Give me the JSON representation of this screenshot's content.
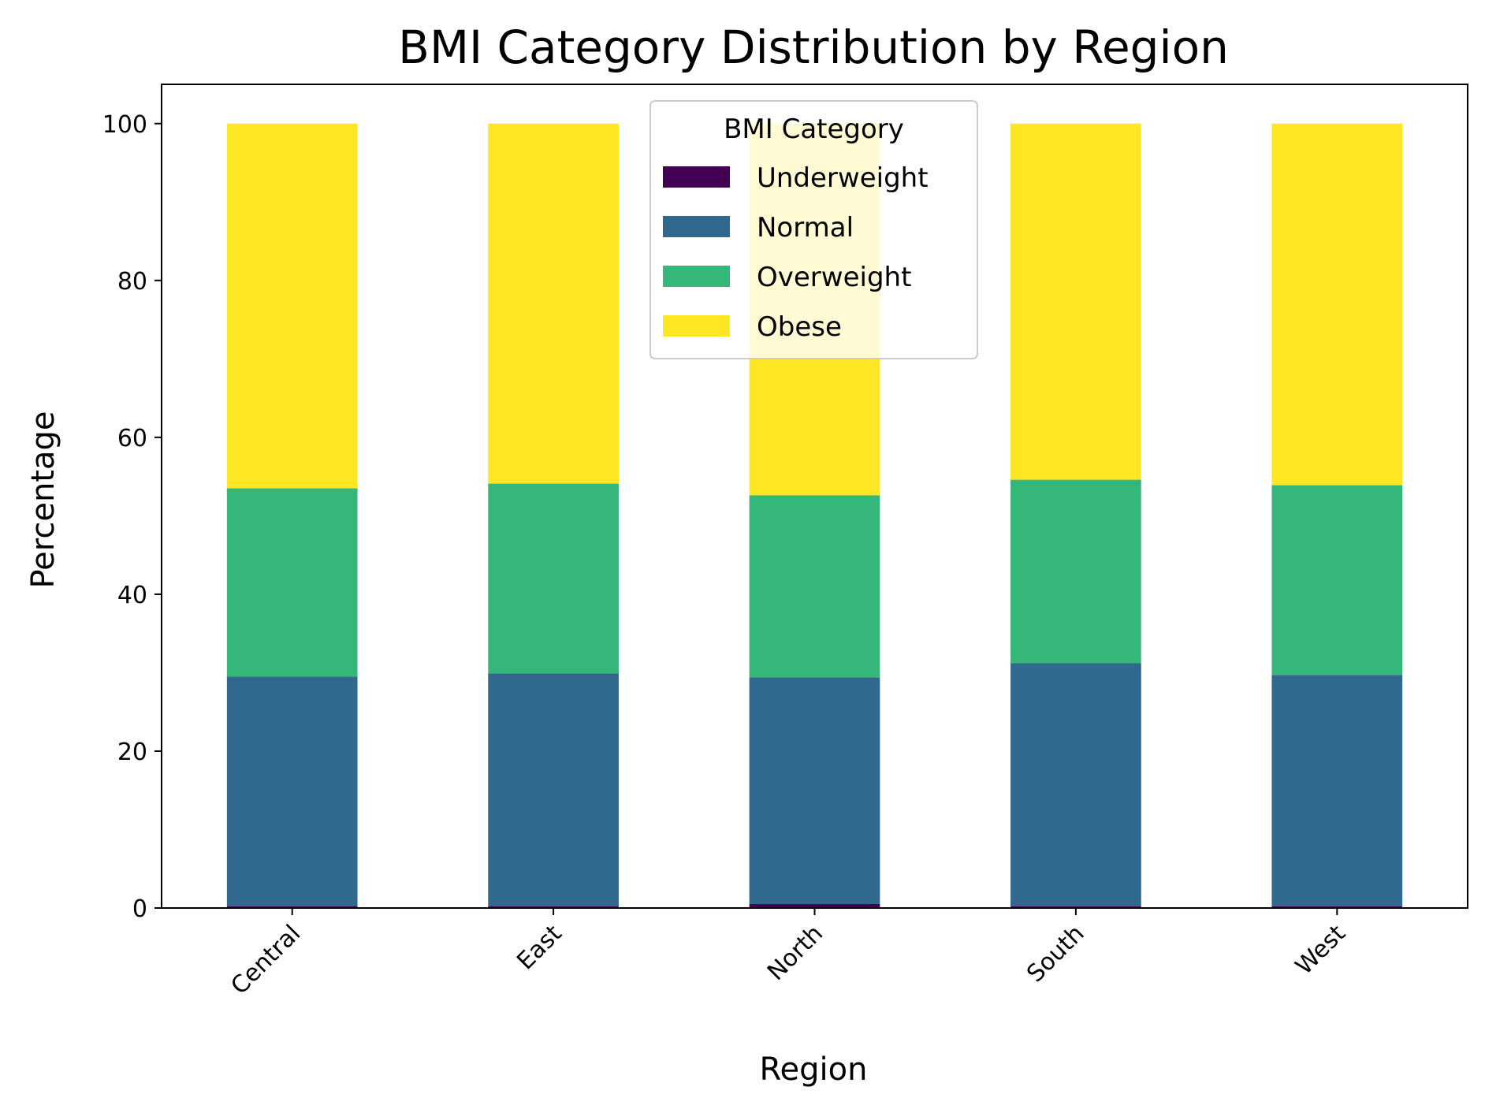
{
  "chart_data": {
    "type": "bar",
    "stacked": true,
    "title": "BMI Category Distribution by Region",
    "xlabel": "Region",
    "ylabel": "Percentage",
    "categories": [
      "Central",
      "East",
      "North",
      "South",
      "West"
    ],
    "ylim": [
      0,
      105
    ],
    "yticks": [
      0,
      20,
      40,
      60,
      80,
      100
    ],
    "grid": false,
    "legend": {
      "title": "BMI Category",
      "placement": "upper-center"
    },
    "series": [
      {
        "name": "Underweight",
        "color": "#440154",
        "values": [
          0.2,
          0.2,
          0.5,
          0.2,
          0.2
        ]
      },
      {
        "name": "Normal",
        "color": "#31688e",
        "values": [
          29.3,
          29.7,
          28.9,
          31.0,
          29.5
        ]
      },
      {
        "name": "Overweight",
        "color": "#35b779",
        "values": [
          24.0,
          24.2,
          23.2,
          23.4,
          24.2
        ]
      },
      {
        "name": "Obese",
        "color": "#fde725",
        "values": [
          46.5,
          45.9,
          47.4,
          45.4,
          46.1
        ]
      }
    ]
  }
}
